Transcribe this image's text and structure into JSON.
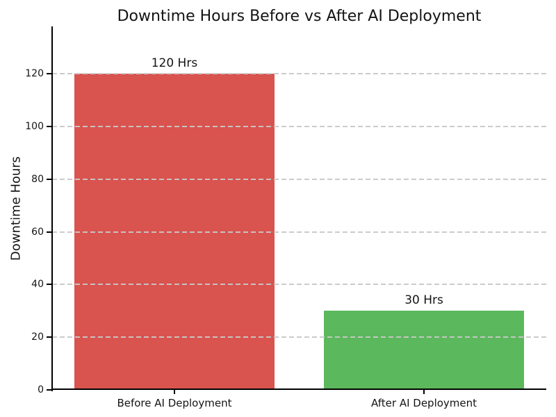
{
  "chart_data": {
    "type": "bar",
    "title": "Downtime Hours Before vs After AI Deployment",
    "categories": [
      "Before AI Deployment",
      "After AI Deployment"
    ],
    "values": [
      120,
      30
    ],
    "bar_labels": [
      "120 Hrs",
      "30 Hrs"
    ],
    "bar_colors": [
      "#d9534f",
      "#5cb85c"
    ],
    "xlabel": "",
    "ylabel": "Downtime Hours",
    "ylim": [
      0,
      138
    ],
    "yticks": [
      0,
      20,
      40,
      60,
      80,
      100,
      120
    ],
    "grid": {
      "axis": "y",
      "style": "dashed",
      "color": "#c8c8c8"
    },
    "legend": "none",
    "background": "#ffffff",
    "text_color": "#141414",
    "axis_color": "#000000"
  }
}
